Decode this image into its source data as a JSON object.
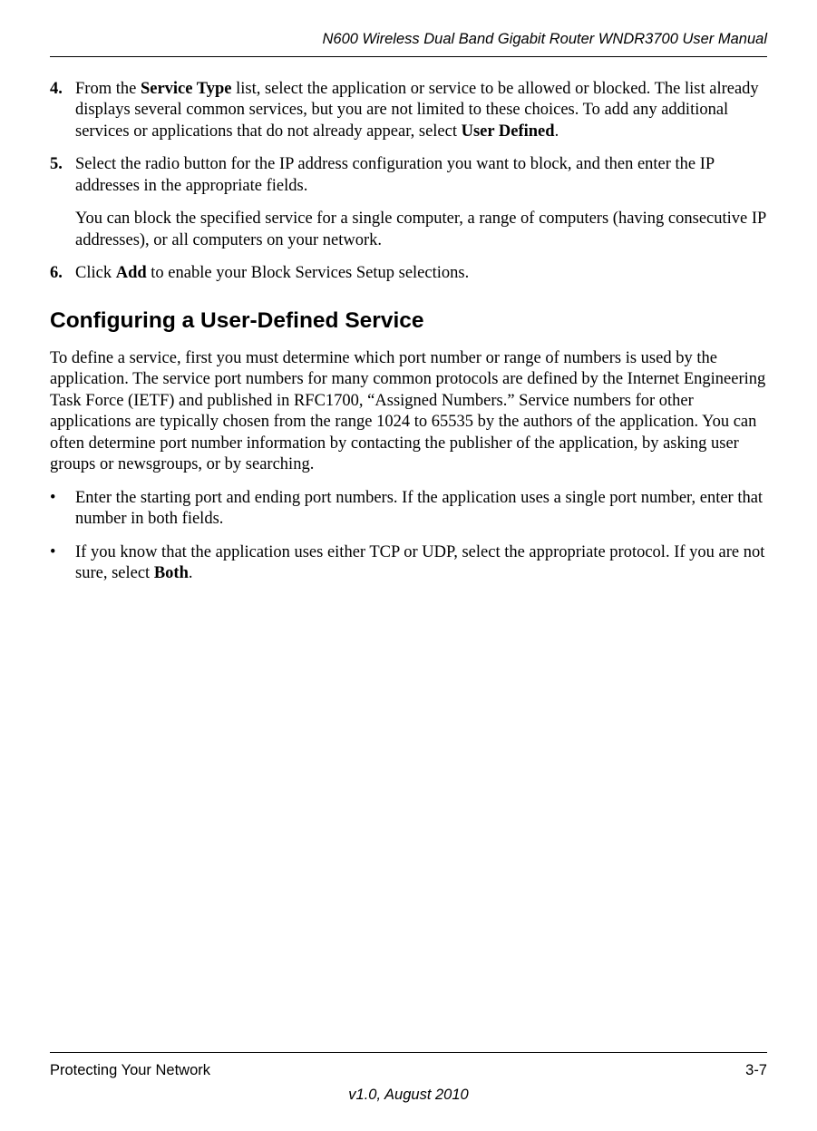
{
  "header": {
    "title": "N600 Wireless Dual Band Gigabit Router WNDR3700 User Manual"
  },
  "steps": [
    {
      "marker": "4.",
      "paragraphs": [
        {
          "pre": "From the ",
          "bold1": "Service Type",
          "mid": " list, select the application or service to be allowed or blocked. The list already displays several common services, but you are not limited to these choices. To add any additional services or applications that do not already appear, select ",
          "bold2": "User Defined",
          "post": "."
        }
      ]
    },
    {
      "marker": "5.",
      "paragraphs": [
        {
          "text": "Select the radio button for the IP address configuration you want to block, and then enter the IP addresses in the appropriate fields."
        },
        {
          "text": "You can block the specified service for a single computer, a range of computers (having consecutive IP addresses), or all computers on your network."
        }
      ]
    },
    {
      "marker": "6.",
      "paragraphs": [
        {
          "pre": "Click ",
          "bold1": "Add",
          "post": " to enable your Block Services Setup selections."
        }
      ]
    }
  ],
  "section": {
    "heading": "Configuring a User-Defined Service",
    "para": "To define a service, first you must determine which port number or range of numbers is used by the application. The service port numbers for many common protocols are defined by the Internet Engineering Task Force (IETF) and published in RFC1700, “Assigned Numbers.” Service numbers for other applications are typically chosen from the range 1024 to 65535 by the authors of the application. You can often determine port number information by contacting the publisher of the application, by asking user groups or newsgroups, or by searching."
  },
  "bullets": [
    {
      "text": "Enter the starting port and ending port numbers. If the application uses a single port number, enter that number in both fields."
    },
    {
      "pre": "If you know that the application uses either TCP or UDP, select the appropriate protocol. If you are not sure, select ",
      "bold1": "Both",
      "post": "."
    }
  ],
  "footer": {
    "left": "Protecting Your Network",
    "right": "3-7",
    "center": "v1.0, August 2010"
  },
  "bullet_char": "•"
}
